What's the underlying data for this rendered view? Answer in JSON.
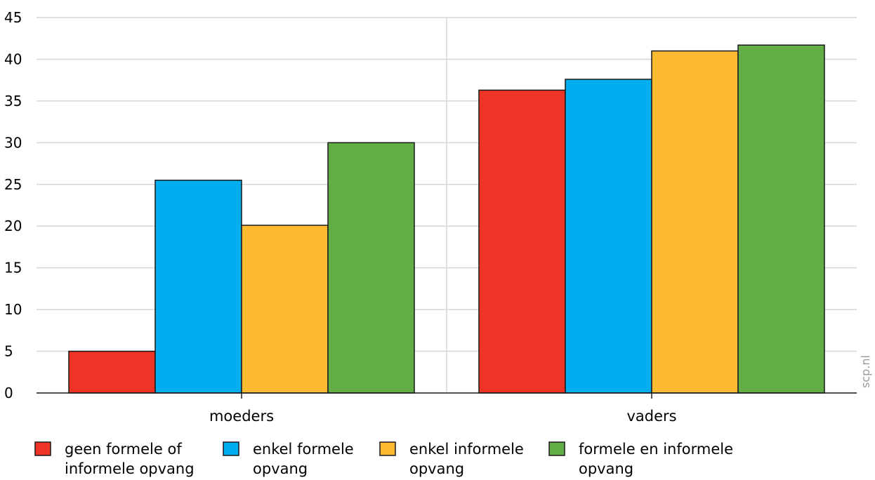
{
  "chart_data": {
    "type": "bar",
    "categories": [
      "moeders",
      "vaders"
    ],
    "series": [
      {
        "name": "geen formele of informele opvang",
        "name_lines": [
          "geen formele of",
          "informele opvang"
        ],
        "color": "#ee3426",
        "values": [
          5.0,
          36.3
        ]
      },
      {
        "name": "enkel formele opvang",
        "name_lines": [
          "enkel formele",
          "opvang"
        ],
        "color": "#00adee",
        "values": [
          25.5,
          37.6
        ]
      },
      {
        "name": "enkel informele opvang",
        "name_lines": [
          "enkel informele",
          "opvang"
        ],
        "color": "#fcba33",
        "values": [
          20.1,
          41.0
        ]
      },
      {
        "name": "formele en informele opvang",
        "name_lines": [
          "formele en informele",
          "opvang"
        ],
        "color": "#62ad46",
        "values": [
          30.0,
          41.7
        ]
      }
    ],
    "ylim": [
      0,
      45
    ],
    "yticks": [
      0,
      5,
      10,
      15,
      20,
      25,
      30,
      35,
      40,
      45
    ],
    "ytick_labels": [
      "0",
      "5",
      "10",
      "15",
      "20",
      "25",
      "30",
      "35",
      "40",
      "45"
    ],
    "grid": true,
    "legend_position": "bottom",
    "credit": "scp.nl"
  }
}
